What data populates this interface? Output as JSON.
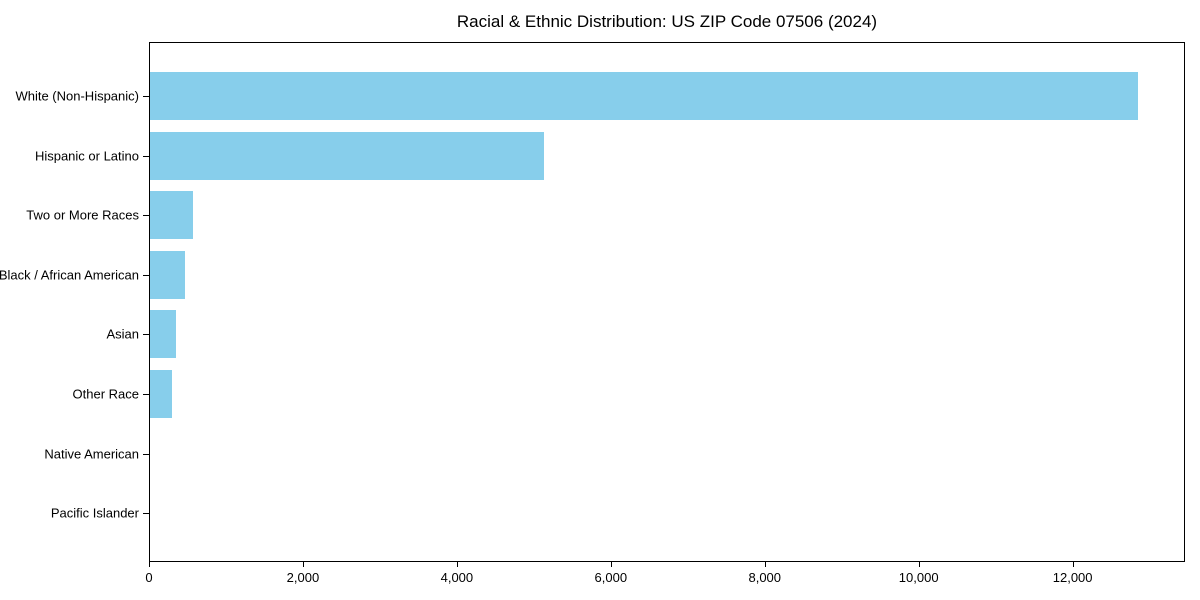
{
  "chart_data": {
    "type": "bar",
    "orientation": "horizontal",
    "title": "Racial & Ethnic Distribution: US ZIP Code 07506 (2024)",
    "categories": [
      "White (Non-Hispanic)",
      "Hispanic or Latino",
      "Two or More Races",
      "Black / African American",
      "Asian",
      "Other Race",
      "Native American",
      "Pacific Islander"
    ],
    "values": [
      12830,
      5120,
      555,
      460,
      340,
      280,
      0,
      0
    ],
    "xlabel": "",
    "ylabel": "",
    "xlim": [
      0,
      13460
    ],
    "x_ticks": [
      0,
      2000,
      4000,
      6000,
      8000,
      10000,
      12000
    ],
    "x_tick_labels": [
      "0",
      "2,000",
      "4,000",
      "6,000",
      "8,000",
      "10,000",
      "12,000"
    ],
    "bar_color": "#87CEEB",
    "grid": false,
    "legend": null,
    "plot_background": "#ffffff",
    "spine_color": "#000000"
  }
}
